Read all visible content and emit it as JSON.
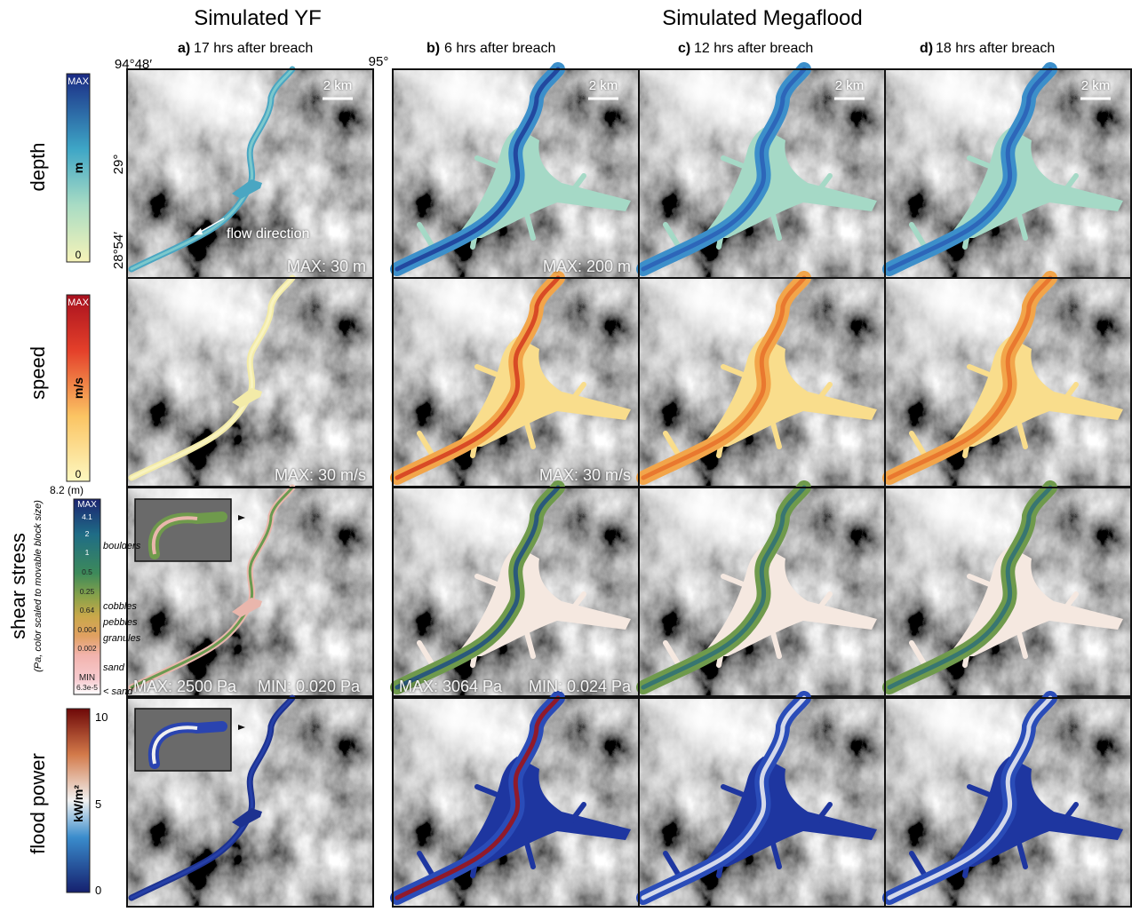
{
  "headers": {
    "yf": "Simulated YF",
    "megaflood": "Simulated Megaflood"
  },
  "columns": [
    {
      "letter": "a)",
      "label": "17 hrs after breach"
    },
    {
      "letter": "b)",
      "label": "6 hrs after breach"
    },
    {
      "letter": "c)",
      "label": "12 hrs after breach"
    },
    {
      "letter": "d)",
      "label": "18 hrs after breach"
    }
  ],
  "coordinates": {
    "lon_left": "94°48′",
    "lon_right": "95°",
    "lat_top": "29°",
    "lat_bottom": "28°54′"
  },
  "annotations": {
    "scale_bar": "2 km",
    "flow": "flow direction"
  },
  "rows": [
    {
      "label": "depth",
      "unit": "m",
      "scale_top": "MAX",
      "scale_bottom": "0",
      "notes": [
        "MAX: 30 m",
        "MAX: 200 m"
      ]
    },
    {
      "label": "speed",
      "unit": "m/s",
      "scale_top": "MAX",
      "scale_bottom": "0",
      "notes": [
        "MAX: 30 m/s",
        "MAX: 30 m/s"
      ]
    },
    {
      "label": "shear stress",
      "sublabel": "(Pa, color scaled to movable block size)",
      "scale_note": "8.2 (m)",
      "scale_ticks": [
        "MAX",
        "4.1",
        "2",
        "1",
        "0.5",
        "0.25",
        "0.64",
        "0.004",
        "0.002",
        "MIN",
        "6.3e-5"
      ],
      "classes": [
        "boulders",
        "cobbles",
        "pebbles",
        "granules",
        "sand",
        "< sand"
      ],
      "notes": [
        "MAX: 2500 Pa",
        "MIN: 0.020 Pa",
        "MAX: 3064 Pa",
        "MIN: 0.024 Pa"
      ]
    },
    {
      "label": "flood power",
      "unit": "kW/m²",
      "scale_ticks": [
        "10",
        "5",
        "0"
      ]
    }
  ]
}
